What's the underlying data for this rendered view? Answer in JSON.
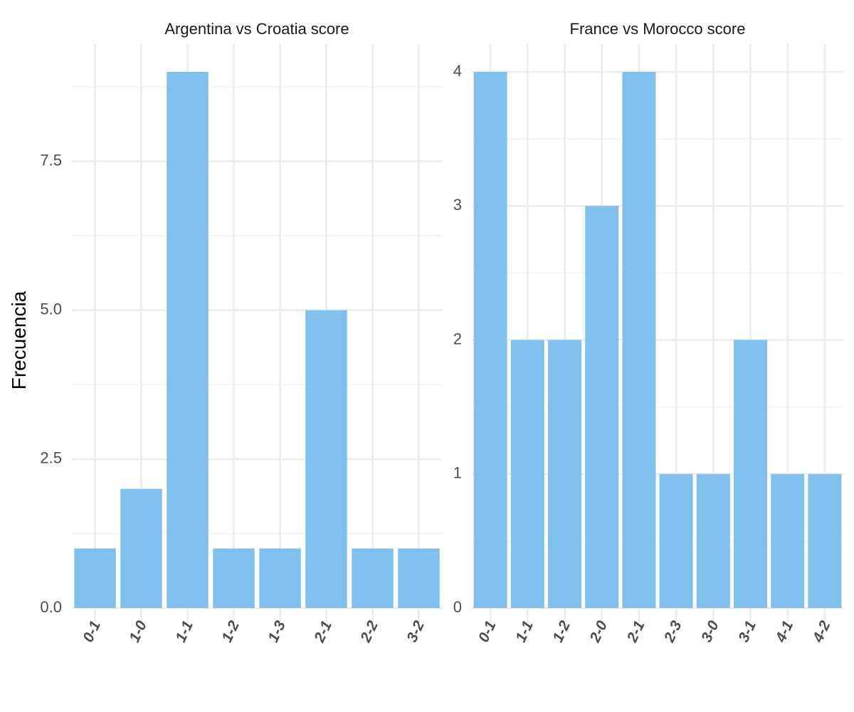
{
  "ylabel": "Frecuencia",
  "bar_color": "#80C0ED",
  "grid_color": "#EBEBEB",
  "chart_data": [
    {
      "type": "bar",
      "title": "Argentina vs Croatia score",
      "categories": [
        "0-1",
        "1-0",
        "1-1",
        "1-2",
        "1-3",
        "2-1",
        "2-2",
        "3-2"
      ],
      "values": [
        1,
        2,
        9,
        1,
        1,
        5,
        1,
        1
      ],
      "ylim": [
        0,
        9
      ],
      "yticks": [
        0,
        2.5,
        5,
        7.5
      ],
      "ytick_labels": [
        "0.0",
        "2.5",
        "5.0",
        "7.5"
      ],
      "grid": true
    },
    {
      "type": "bar",
      "title": "France vs Morocco score",
      "categories": [
        "0-1",
        "1-1",
        "1-2",
        "2-0",
        "2-1",
        "2-3",
        "3-0",
        "3-1",
        "4-1",
        "4-2"
      ],
      "values": [
        4,
        2,
        2,
        3,
        4,
        1,
        1,
        2,
        1,
        1
      ],
      "ylim": [
        0,
        4
      ],
      "yticks": [
        0,
        1,
        2,
        3,
        4
      ],
      "ytick_labels": [
        "0",
        "1",
        "2",
        "3",
        "4"
      ],
      "grid": true
    }
  ]
}
